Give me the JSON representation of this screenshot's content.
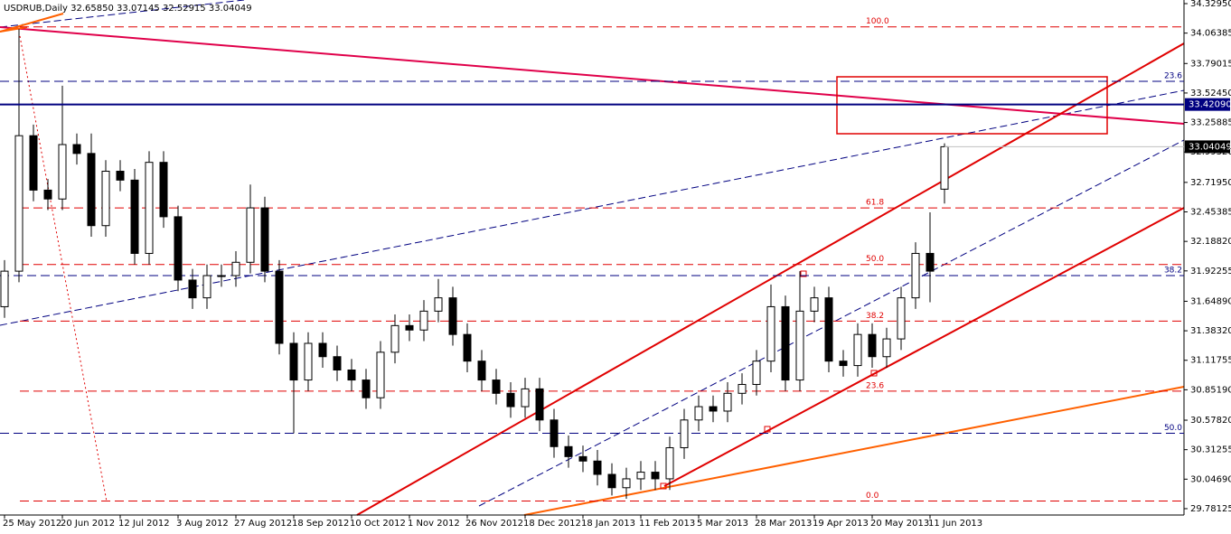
{
  "chart_data": {
    "type": "candlestick",
    "header": "USDRUB,Daily  32.65850 33.07145 32.52915 33.04049",
    "categories": [
      "25 May 2012",
      null,
      null,
      null,
      "20 Jun 2012",
      null,
      null,
      null,
      "12 Jul 2012",
      null,
      null,
      null,
      "3 Aug 2012",
      null,
      null,
      null,
      "27 Aug 2012",
      null,
      null,
      null,
      "18 Sep 2012",
      null,
      null,
      null,
      "10 Oct 2012",
      null,
      null,
      null,
      "1 Nov 2012",
      null,
      null,
      null,
      "26 Nov 2012",
      null,
      null,
      null,
      "18 Dec 2012",
      null,
      null,
      null,
      "18 Jan 2013",
      null,
      null,
      null,
      "11 Feb 2013",
      null,
      null,
      null,
      "5 Mar 2013",
      null,
      null,
      null,
      "28 Mar 2013",
      null,
      null,
      null,
      "19 Apr 2013",
      null,
      null,
      null,
      "20 May 2013",
      null,
      null,
      null,
      "11 Jun 2013",
      null
    ],
    "open": [
      31.6,
      31.92,
      33.14,
      32.65,
      32.57,
      33.06,
      32.98,
      32.33,
      32.82,
      32.74,
      32.08,
      32.9,
      32.41,
      31.84,
      31.68,
      31.88,
      31.88,
      32.0,
      32.49,
      31.92,
      31.27,
      30.94,
      31.27,
      31.15,
      31.03,
      30.94,
      30.78,
      31.19,
      31.43,
      31.39,
      31.56,
      31.68,
      31.35,
      31.11,
      30.94,
      30.82,
      30.7,
      30.86,
      30.58,
      30.34,
      30.25,
      30.21,
      30.09,
      29.97,
      30.05,
      30.11,
      30.05,
      30.33,
      30.58,
      30.7,
      30.66,
      30.82,
      30.9,
      31.11,
      31.6,
      30.94,
      31.56,
      31.68,
      31.11,
      31.07,
      31.35,
      31.15,
      31.31,
      31.68,
      32.08,
      32.6585
    ],
    "high": [
      32.02,
      34.1,
      33.24,
      32.75,
      33.59,
      33.16,
      33.16,
      32.92,
      32.92,
      32.84,
      33.0,
      33.0,
      32.51,
      31.94,
      31.98,
      31.98,
      32.1,
      32.7,
      32.59,
      32.02,
      31.37,
      31.37,
      31.37,
      31.25,
      31.13,
      31.04,
      31.29,
      31.53,
      31.53,
      31.66,
      31.85,
      31.78,
      31.45,
      31.21,
      31.04,
      30.92,
      30.96,
      30.96,
      30.68,
      30.44,
      30.35,
      30.31,
      30.19,
      30.15,
      30.21,
      30.21,
      30.43,
      30.68,
      30.8,
      30.8,
      30.92,
      31.0,
      31.21,
      31.8,
      31.7,
      31.92,
      31.78,
      31.78,
      31.21,
      31.45,
      31.45,
      31.41,
      31.78,
      32.18,
      32.45,
      33.07145
    ],
    "low": [
      31.5,
      31.82,
      32.55,
      32.47,
      32.47,
      32.88,
      32.23,
      32.23,
      32.64,
      31.98,
      31.98,
      32.31,
      31.74,
      31.58,
      31.58,
      31.78,
      31.78,
      31.9,
      31.82,
      31.17,
      30.46,
      30.84,
      31.05,
      30.93,
      30.84,
      30.68,
      30.68,
      31.09,
      31.29,
      31.29,
      31.46,
      31.25,
      31.01,
      30.84,
      30.72,
      30.6,
      30.6,
      30.48,
      30.24,
      30.15,
      30.11,
      29.99,
      29.9,
      29.87,
      29.95,
      29.95,
      29.95,
      30.23,
      30.48,
      30.56,
      30.56,
      30.72,
      30.8,
      31.01,
      30.84,
      30.84,
      31.46,
      31.01,
      30.97,
      30.97,
      31.05,
      31.05,
      31.21,
      31.58,
      31.64,
      32.52915
    ],
    "close": [
      31.92,
      33.14,
      32.65,
      32.57,
      33.06,
      32.98,
      32.33,
      32.82,
      32.74,
      32.08,
      32.9,
      32.41,
      31.84,
      31.68,
      31.88,
      31.88,
      32.0,
      32.49,
      31.92,
      31.27,
      30.94,
      31.27,
      31.15,
      31.03,
      30.94,
      30.78,
      31.19,
      31.43,
      31.39,
      31.56,
      31.68,
      31.35,
      31.11,
      30.94,
      30.82,
      30.7,
      30.86,
      30.58,
      30.34,
      30.25,
      30.21,
      30.09,
      29.97,
      30.05,
      30.11,
      30.05,
      30.33,
      30.58,
      30.7,
      30.66,
      30.82,
      30.9,
      31.11,
      31.6,
      30.94,
      31.56,
      31.68,
      31.11,
      31.07,
      31.35,
      31.15,
      31.31,
      31.68,
      32.08,
      31.92,
      33.04049
    ],
    "ylim": [
      29.724,
      34.362
    ],
    "yticks": [
      {
        "value": 34.3295,
        "label": "34.32950"
      },
      {
        "value": 34.06385,
        "label": "34.06385"
      },
      {
        "value": 33.79015,
        "label": "33.79015"
      },
      {
        "value": 33.5245,
        "label": "33.52450"
      },
      {
        "value": 33.25885,
        "label": "33.25885"
      },
      {
        "value": 32.9932,
        "label": "32.99320"
      },
      {
        "value": 32.7195,
        "label": "32.71950"
      },
      {
        "value": 32.45385,
        "label": "32.45385"
      },
      {
        "value": 32.1882,
        "label": "32.18820"
      },
      {
        "value": 31.92255,
        "label": "31.92255"
      },
      {
        "value": 31.6489,
        "label": "31.64890"
      },
      {
        "value": 31.3832,
        "label": "31.38320"
      },
      {
        "value": 31.11755,
        "label": "31.11755"
      },
      {
        "value": 30.8519,
        "label": "30.85190"
      },
      {
        "value": 30.5782,
        "label": "30.57820"
      },
      {
        "value": 30.31255,
        "label": "30.31255"
      },
      {
        "value": 30.0469,
        "label": "30.04690"
      },
      {
        "value": 29.78125,
        "label": "29.78125"
      }
    ],
    "price_markers": [
      {
        "value": 33.4209,
        "label": "33.42090",
        "color": "#000080"
      },
      {
        "value": 33.04049,
        "label": "33.04049",
        "color": "#000000"
      }
    ],
    "fib_levels": [
      {
        "value": 34.12,
        "label": "100.0"
      },
      {
        "value": 32.49,
        "label": "61.8"
      },
      {
        "value": 31.98,
        "label": "50.0"
      },
      {
        "value": 31.47,
        "label": "38.2"
      },
      {
        "value": 30.84,
        "label": "23.6"
      },
      {
        "value": 29.85,
        "label": "0.0"
      }
    ],
    "blue_levels": [
      {
        "value": 33.63,
        "label": "23.6"
      },
      {
        "value": 31.88,
        "label": "38.2"
      },
      {
        "value": 30.46,
        "label": "50.0"
      }
    ]
  }
}
